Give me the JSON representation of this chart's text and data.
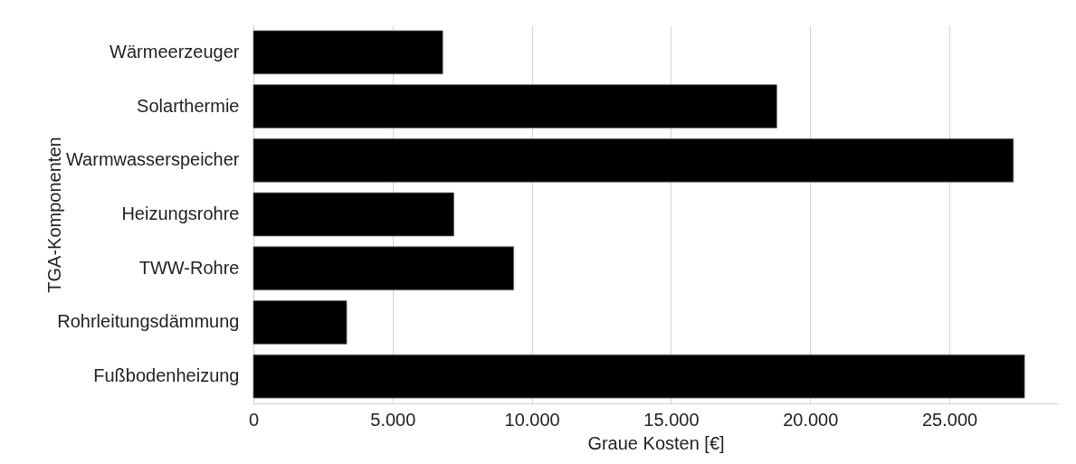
{
  "chart_data": {
    "type": "bar",
    "orientation": "horizontal",
    "xlabel": "Graue Kosten  [€]",
    "ylabel": "TGA-Komponenten",
    "categories": [
      "Wärmeerzeuger",
      "Solarthermie",
      "Warmwasserspeicher",
      "Heizungsrohre",
      "TWW-Rohre",
      "Rohrleitungsdämmung",
      "Fußbodenheizung"
    ],
    "values": [
      6800,
      18800,
      27300,
      7200,
      9350,
      3350,
      27700
    ],
    "color": "#000000",
    "xlim": [
      0,
      28900
    ],
    "xticks": [
      {
        "value": 0,
        "label": "0"
      },
      {
        "value": 5000,
        "label": "5.000"
      },
      {
        "value": 10000,
        "label": "10.000"
      },
      {
        "value": 15000,
        "label": "15.000"
      },
      {
        "value": 20000,
        "label": "20.000"
      },
      {
        "value": 25000,
        "label": "25.000"
      }
    ],
    "grid": "x"
  }
}
